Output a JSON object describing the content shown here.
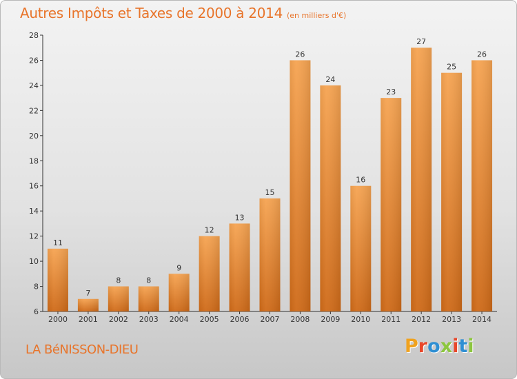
{
  "header": {
    "title": "Autres Impôts et Taxes de 2000 à 2014",
    "unit": "(en milliers d'€)"
  },
  "footer": {
    "location": "LA BéNISSON-DIEU",
    "brand": "Proxiti",
    "brand_colors": [
      "#f0a21e",
      "#e8472a",
      "#2f8fd3",
      "#8cc63f",
      "#e8472a",
      "#2f8fd3",
      "#8cc63f"
    ]
  },
  "chart_data": {
    "type": "bar",
    "categories": [
      "2000",
      "2001",
      "2002",
      "2003",
      "2004",
      "2005",
      "2006",
      "2007",
      "2008",
      "2009",
      "2010",
      "2011",
      "2012",
      "2013",
      "2014"
    ],
    "values": [
      11,
      7,
      8,
      8,
      9,
      12,
      13,
      15,
      26,
      24,
      16,
      23,
      27,
      25,
      26
    ],
    "ylim": [
      6,
      28
    ],
    "yticks": [
      6,
      8,
      10,
      12,
      14,
      16,
      18,
      20,
      22,
      24,
      26,
      28
    ],
    "grid": false,
    "bar_color_top": "#f6a452",
    "bar_color_bottom": "#cf6a18",
    "axis_color": "#333333"
  }
}
